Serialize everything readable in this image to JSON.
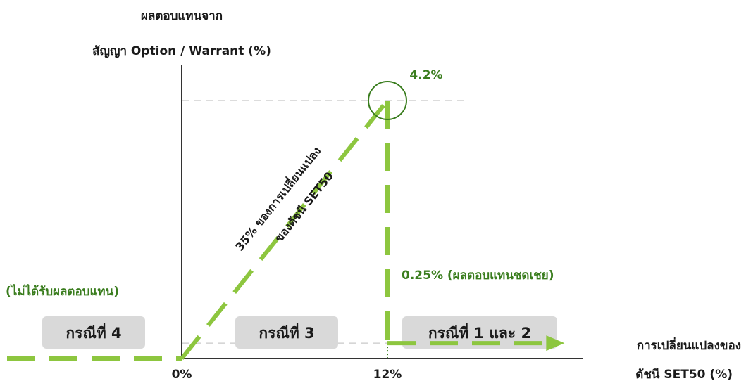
{
  "chart_data": {
    "type": "line",
    "title": "",
    "y_axis_label_line1": "ผลตอบแทนจาก",
    "y_axis_label_line2": "สัญญา Option / Warrant (%)",
    "x_axis_label_line1": "การเปลี่ยนแปลงของ",
    "x_axis_label_line2": "ดัชนี SET50 (%)",
    "x_ticks": [
      "0%",
      "12%"
    ],
    "series": [
      {
        "x": [
          -12,
          0,
          12,
          12,
          22
        ],
        "y": [
          0,
          0,
          4.2,
          0.25,
          0.25
        ]
      }
    ],
    "xlim": [
      -12,
      25
    ],
    "ylim": [
      0,
      5
    ],
    "annotations": {
      "peak_label": "4.2%",
      "slope_line1": "35% ของการเปลี่ยนแปลง",
      "slope_line2": "ของดัชนี SET50",
      "compensation_label": "0.25% (ผลตอบแทนชดเชย)",
      "no_return_label": "(ไม่ได้รับผลตอบแทน)"
    },
    "cases": [
      {
        "label": "กรณีที่ 4"
      },
      {
        "label": "กรณีที่ 3"
      },
      {
        "label": "กรณีที่ 1 และ 2"
      }
    ],
    "colors": {
      "line": "#8dc63f",
      "label_green": "#3a7d1e",
      "axis": "#333333",
      "gridline": "#c8c8c8",
      "case_box": "#d9d9d9",
      "text": "#1a1a1a"
    }
  }
}
